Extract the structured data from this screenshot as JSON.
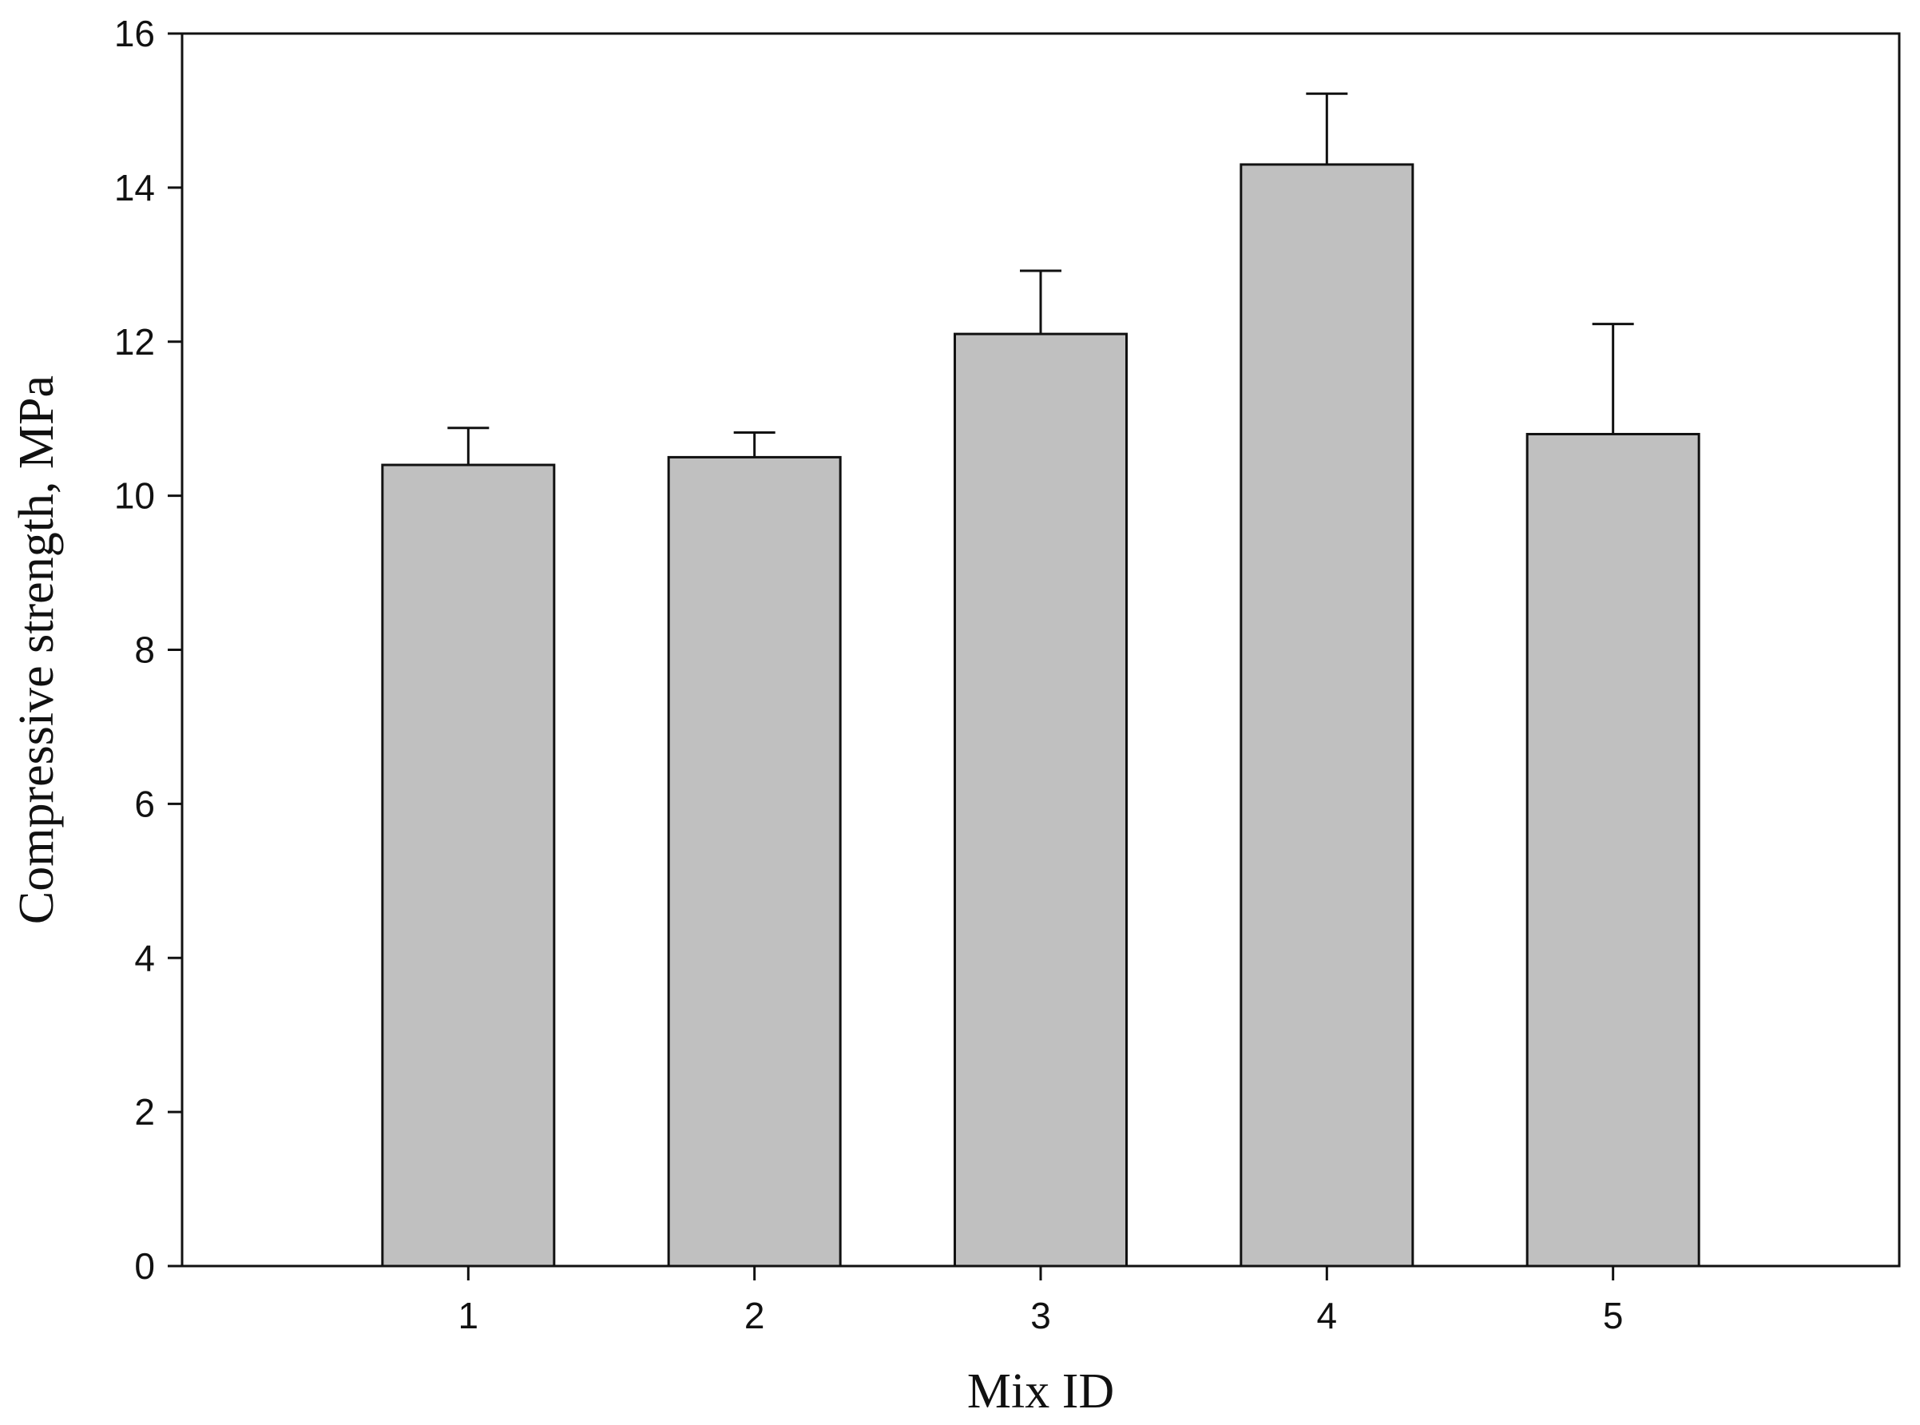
{
  "chart_data": {
    "type": "bar",
    "title": "",
    "xlabel": "Mix ID",
    "ylabel": "Compressive strength, MPa",
    "categories": [
      "1",
      "2",
      "3",
      "4",
      "5"
    ],
    "values": [
      10.4,
      10.5,
      12.1,
      14.3,
      10.8
    ],
    "error_plus": [
      0.48,
      0.32,
      0.82,
      0.92,
      1.43
    ],
    "ylim": [
      0,
      16
    ],
    "yticks": [
      "0",
      "2",
      "4",
      "6",
      "8",
      "10",
      "12",
      "14",
      "16"
    ],
    "grid": false,
    "legend": "none",
    "colors": {
      "bar_fill": "#c0c0c0",
      "bar_stroke": "#111111",
      "axis": "#111111"
    }
  }
}
